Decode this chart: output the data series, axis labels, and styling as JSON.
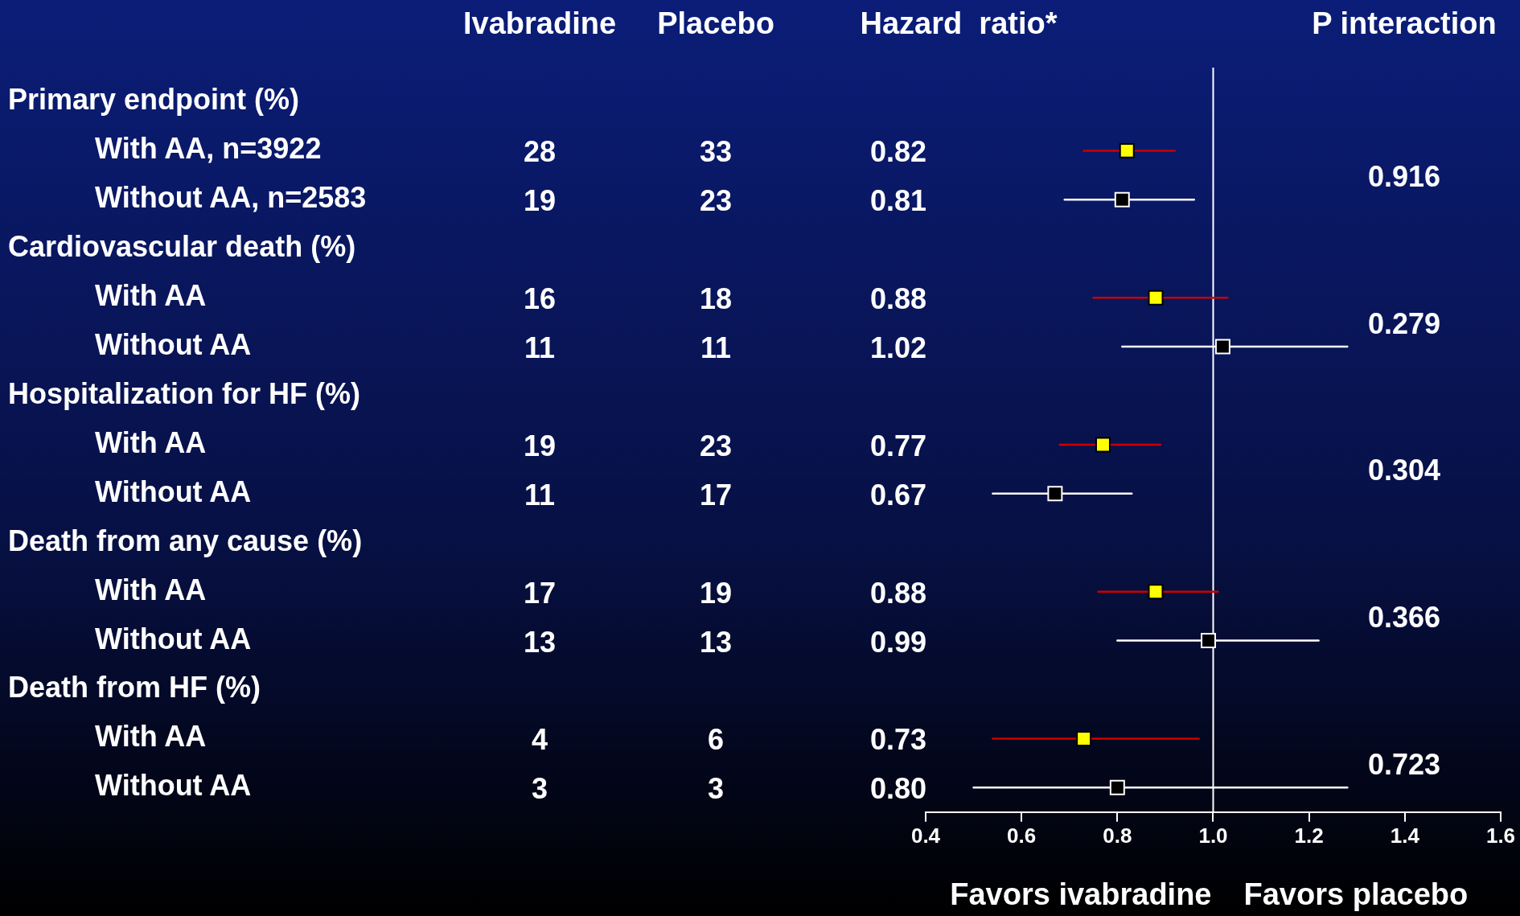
{
  "chart_data": [
    {
      "type": "other",
      "categories": [
        "Primary endpoint (%)",
        "With AA, n=3922",
        "Without AA, n=2583",
        "Cardiovascular death (%)",
        "With AA",
        "Without AA",
        "Hospitalization for HF (%)",
        "With AA",
        "Without AA",
        "Death from any cause (%)",
        "With AA",
        "Without AA",
        "Death from HF (%)",
        "With AA",
        "Without AA"
      ],
      "series": [
        {
          "name": "Ivabradine",
          "values": [
            null,
            28,
            19,
            null,
            16,
            11,
            null,
            19,
            11,
            null,
            17,
            13,
            null,
            4,
            3
          ],
          "value_labels": [
            null,
            "28",
            "19",
            null,
            "16",
            "11",
            null,
            "19",
            "11",
            null,
            "17",
            "13",
            null,
            "4",
            "3"
          ]
        },
        {
          "name": "Placebo",
          "values": [
            null,
            33,
            23,
            null,
            18,
            11,
            null,
            23,
            17,
            null,
            19,
            13,
            null,
            6,
            3
          ],
          "value_labels": [
            null,
            "33",
            "23",
            null,
            "18",
            "11",
            null,
            "23",
            "17",
            null,
            "19",
            "13",
            null,
            "6",
            "3"
          ]
        },
        {
          "name": "Hazard  ratio*",
          "values": [
            null,
            0.82,
            0.81,
            null,
            0.88,
            1.02,
            null,
            0.77,
            0.67,
            null,
            0.88,
            0.99,
            null,
            0.73,
            0.8
          ],
          "value_labels": [
            null,
            "0.82",
            "0.81",
            null,
            "0.88",
            "1.02",
            null,
            "0.77",
            "0.67",
            null,
            "0.88",
            "0.99",
            null,
            "0.73",
            "0.80"
          ]
        },
        {
          "name": "P interaction",
          "values": [
            null,
            null,
            0.916,
            null,
            null,
            0.279,
            null,
            null,
            0.304,
            null,
            null,
            0.366,
            null,
            null,
            0.723
          ],
          "value_labels": [
            null,
            null,
            "0.916",
            null,
            null,
            "0.279",
            null,
            null,
            "0.304",
            null,
            null,
            "0.366",
            null,
            null,
            "0.723"
          ]
        }
      ]
    },
    {
      "type": "scatter",
      "orientation": "horizontal",
      "categories": [
        null,
        null,
        null,
        null,
        null,
        null,
        null,
        null,
        null,
        null,
        null,
        null,
        null,
        null,
        null
      ],
      "series": [
        {
          "color": "#cc0000",
          "colors": [
            null,
            "#ffff00",
            null,
            null,
            "#ffff00",
            null,
            null,
            "#ffff00",
            null,
            null,
            "#ffff00",
            null,
            null,
            "#ffff00",
            null
          ],
          "values": [
            null,
            0.82,
            null,
            null,
            0.88,
            null,
            null,
            0.77,
            null,
            null,
            0.88,
            null,
            null,
            0.73,
            null
          ],
          "errors": [
            null,
            [
              0.73,
              0.92
            ],
            null,
            null,
            [
              0.75,
              1.03
            ],
            null,
            null,
            [
              0.68,
              0.89
            ],
            null,
            null,
            [
              0.76,
              1.01
            ],
            null,
            null,
            [
              0.54,
              0.97
            ],
            null
          ]
        },
        {
          "color": "#ffffff",
          "colors": [
            null,
            null,
            "#000000",
            null,
            null,
            "#000000",
            null,
            null,
            "#000000",
            null,
            null,
            "#000000",
            null,
            null,
            "#000000"
          ],
          "values": [
            null,
            null,
            0.81,
            null,
            null,
            1.02,
            null,
            null,
            0.67,
            null,
            null,
            0.99,
            null,
            null,
            0.8
          ],
          "errors": [
            null,
            null,
            [
              0.69,
              0.96
            ],
            null,
            null,
            [
              0.81,
              1.28
            ],
            null,
            null,
            [
              0.54,
              0.83
            ],
            null,
            null,
            [
              0.8,
              1.22
            ],
            null,
            null,
            [
              0.5,
              1.28
            ]
          ]
        }
      ],
      "xlim": [
        0.4,
        1.6
      ],
      "xticks": [
        0.4,
        0.6,
        0.8,
        {
          "value": 1,
          "label": "1.0"
        },
        1.2,
        1.4,
        1.6
      ],
      "ref_lines": [
        {
          "axis": "x",
          "value": 1,
          "color": "#ffffff"
        }
      ],
      "annotations": [
        "Favors ivabradine",
        "Favors placebo"
      ],
      "marker": "square",
      "grid": false,
      "legend": false
    }
  ]
}
